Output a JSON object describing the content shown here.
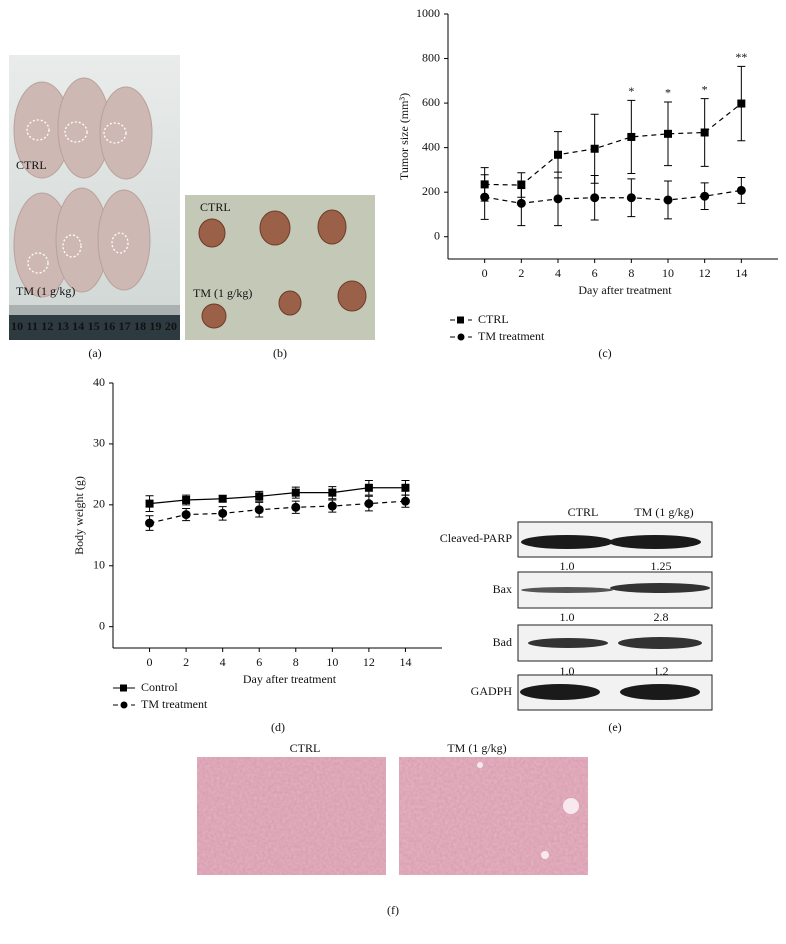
{
  "panel_labels": [
    "(a)",
    "(b)",
    "(c)",
    "(d)",
    "(e)",
    "(f)"
  ],
  "photo_a": {
    "labels": [
      "CTRL",
      "TM (1 g/kg)"
    ],
    "ruler": "10 11 12 13 14 15 16 17 18 19 20"
  },
  "photo_b": {
    "labels": [
      "CTRL",
      "TM (1 g/kg)"
    ]
  },
  "blot": {
    "columns": [
      "CTRL",
      "TM (1 g/kg)"
    ],
    "rows": [
      {
        "name": "Cleaved-PARP",
        "ratios": [
          "1.0",
          "1.25"
        ]
      },
      {
        "name": "Bax",
        "ratios": [
          "1.0",
          "2.8"
        ]
      },
      {
        "name": "Bad",
        "ratios": [
          "1.0",
          "1.2"
        ]
      },
      {
        "name": "GADPH"
      }
    ]
  },
  "histology": {
    "labels": [
      "CTRL",
      "TM (1 g/kg)"
    ]
  },
  "chart_data": [
    {
      "type": "line",
      "x_label": "Day after treatment",
      "y_label": "Tumor size (mm³)",
      "x": [
        0,
        2,
        4,
        6,
        8,
        10,
        12,
        14
      ],
      "xlim": [
        -2,
        16
      ],
      "xticks": [
        0,
        2,
        4,
        6,
        8,
        10,
        12,
        14
      ],
      "ylim": [
        -100,
        1000
      ],
      "yticks": [
        0,
        200,
        400,
        600,
        800,
        1000
      ],
      "legend": "below",
      "series": [
        {
          "name": "CTRL",
          "color": "#000000",
          "marker": "square",
          "linestyle": "dashed",
          "values": [
            235,
            232,
            368,
            395,
            448,
            462,
            468,
            598
          ],
          "errors": [
            75,
            55,
            104,
            155,
            164,
            143,
            152,
            167
          ]
        },
        {
          "name": "TM treatment",
          "color": "#000000",
          "marker": "circle",
          "linestyle": "dashed",
          "values": [
            178,
            150,
            170,
            175,
            175,
            165,
            182,
            208
          ],
          "errors": [
            100,
            100,
            120,
            100,
            85,
            85,
            60,
            58
          ]
        }
      ],
      "annotations": [
        {
          "x": 8,
          "text": "*"
        },
        {
          "x": 10,
          "text": "*"
        },
        {
          "x": 12,
          "text": "*"
        },
        {
          "x": 14,
          "text": "**"
        }
      ]
    },
    {
      "type": "line",
      "x_label": "Day after treatment",
      "y_label": "Body weight (g)",
      "x": [
        0,
        2,
        4,
        6,
        8,
        10,
        12,
        14
      ],
      "xlim": [
        -2,
        16
      ],
      "xticks": [
        0,
        2,
        4,
        6,
        8,
        10,
        12,
        14
      ],
      "ylim": [
        -3.5,
        40
      ],
      "yticks": [
        0,
        10,
        20,
        30,
        40
      ],
      "legend": "below",
      "series": [
        {
          "name": "Control",
          "color": "#000000",
          "marker": "square",
          "linestyle": "solid",
          "values": [
            20.2,
            20.8,
            21.0,
            21.4,
            22.0,
            22.0,
            22.8,
            22.8
          ],
          "errors": [
            1.3,
            0.8,
            0.5,
            0.8,
            0.9,
            1.0,
            1.2,
            1.2
          ]
        },
        {
          "name": "TM treatment",
          "color": "#000000",
          "marker": "circle",
          "linestyle": "dashed",
          "values": [
            17.0,
            18.4,
            18.6,
            19.2,
            19.6,
            19.8,
            20.2,
            20.6
          ],
          "errors": [
            1.2,
            1.0,
            1.1,
            1.2,
            1.0,
            1.0,
            1.2,
            1.0
          ]
        }
      ]
    }
  ]
}
